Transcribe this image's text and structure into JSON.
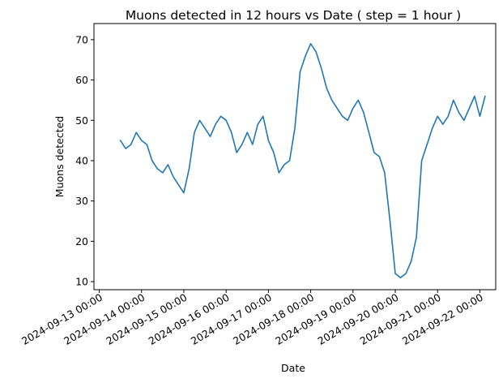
{
  "chart_data": {
    "type": "line",
    "title": "Muons detected in 12 hours vs Date ( step = 1 hour )",
    "xlabel": "Date",
    "ylabel": "Muons detected",
    "x_ticks": [
      "2024-09-13 00:00",
      "2024-09-14 00:00",
      "2024-09-15 00:00",
      "2024-09-16 00:00",
      "2024-09-17 00:00",
      "2024-09-18 00:00",
      "2024-09-19 00:00",
      "2024-09-20 00:00",
      "2024-09-21 00:00",
      "2024-09-22 00:00"
    ],
    "y_ticks": [
      10,
      20,
      30,
      40,
      50,
      60,
      70
    ],
    "xlim": [
      "2024-09-12 21:00",
      "2024-09-22 09:00"
    ],
    "ylim": [
      8,
      74
    ],
    "grid": false,
    "line_color": "#1f77b4",
    "series": [
      {
        "x": [
          "2024-09-13 12:00",
          "2024-09-13 15:00",
          "2024-09-13 18:00",
          "2024-09-13 21:00",
          "2024-09-14 00:00",
          "2024-09-14 03:00",
          "2024-09-14 06:00",
          "2024-09-14 09:00",
          "2024-09-14 12:00",
          "2024-09-14 15:00",
          "2024-09-14 18:00",
          "2024-09-14 21:00",
          "2024-09-15 00:00",
          "2024-09-15 03:00",
          "2024-09-15 06:00",
          "2024-09-15 09:00",
          "2024-09-15 12:00",
          "2024-09-15 15:00",
          "2024-09-15 18:00",
          "2024-09-15 21:00",
          "2024-09-16 00:00",
          "2024-09-16 03:00",
          "2024-09-16 06:00",
          "2024-09-16 09:00",
          "2024-09-16 12:00",
          "2024-09-16 15:00",
          "2024-09-16 18:00",
          "2024-09-16 21:00",
          "2024-09-17 00:00",
          "2024-09-17 03:00",
          "2024-09-17 06:00",
          "2024-09-17 09:00",
          "2024-09-17 12:00",
          "2024-09-17 15:00",
          "2024-09-17 18:00",
          "2024-09-17 21:00",
          "2024-09-18 00:00",
          "2024-09-18 03:00",
          "2024-09-18 06:00",
          "2024-09-18 09:00",
          "2024-09-18 12:00",
          "2024-09-18 15:00",
          "2024-09-18 18:00",
          "2024-09-18 21:00",
          "2024-09-19 00:00",
          "2024-09-19 03:00",
          "2024-09-19 06:00",
          "2024-09-19 09:00",
          "2024-09-19 12:00",
          "2024-09-19 15:00",
          "2024-09-19 18:00",
          "2024-09-19 21:00",
          "2024-09-20 00:00",
          "2024-09-20 03:00",
          "2024-09-20 06:00",
          "2024-09-20 09:00",
          "2024-09-20 12:00",
          "2024-09-20 15:00",
          "2024-09-20 18:00",
          "2024-09-20 21:00",
          "2024-09-21 00:00",
          "2024-09-21 03:00",
          "2024-09-21 06:00",
          "2024-09-21 09:00",
          "2024-09-21 12:00",
          "2024-09-21 15:00",
          "2024-09-21 18:00",
          "2024-09-21 21:00",
          "2024-09-22 00:00",
          "2024-09-22 03:00"
        ],
        "values": [
          45,
          43,
          44,
          47,
          45,
          44,
          40,
          38,
          37,
          39,
          36,
          34,
          32,
          38,
          47,
          50,
          48,
          46,
          49,
          51,
          50,
          47,
          42,
          44,
          47,
          44,
          49,
          51,
          45,
          42,
          37,
          39,
          40,
          48,
          62,
          66,
          69,
          67,
          63,
          58,
          55,
          53,
          51,
          50,
          53,
          55,
          52,
          47,
          42,
          41,
          37,
          25,
          12,
          11,
          12,
          15,
          21,
          40,
          44,
          48,
          51,
          49,
          51,
          55,
          52,
          50,
          53,
          56,
          51,
          56
        ]
      }
    ]
  }
}
